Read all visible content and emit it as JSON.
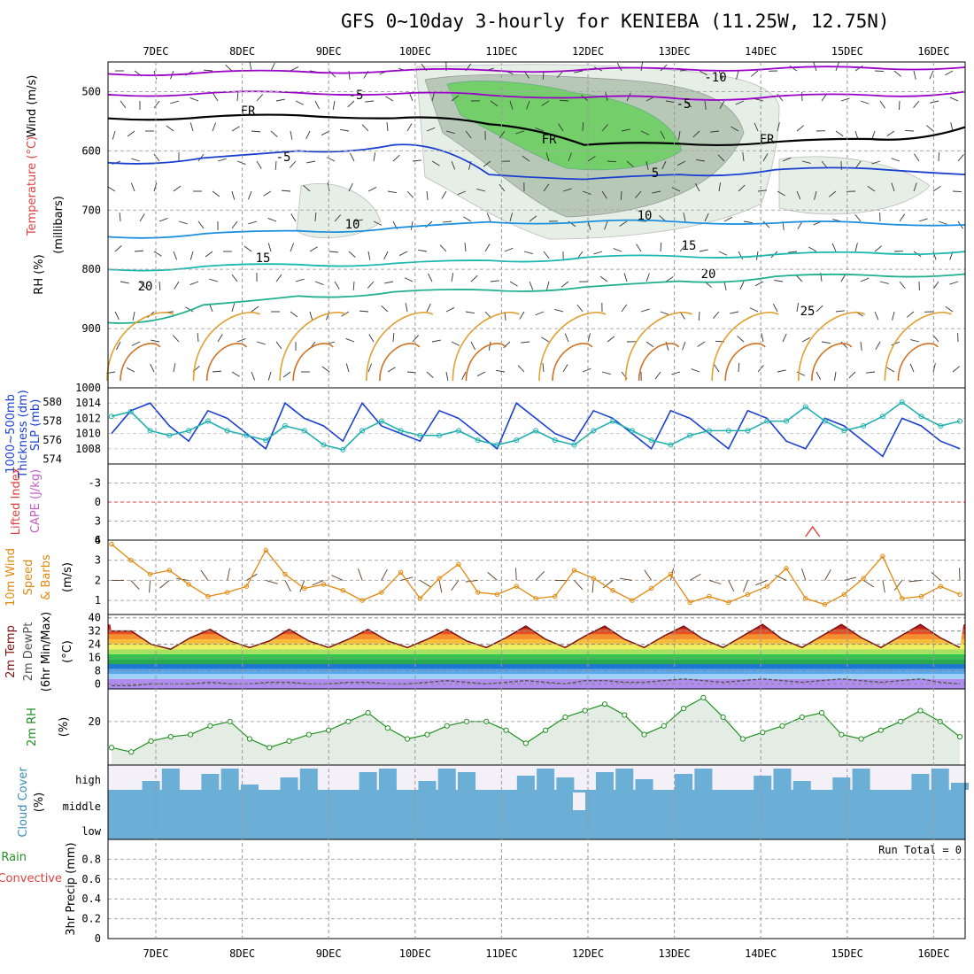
{
  "title": "GFS 0~10day 3-hourly for KENIEBA (11.25W, 12.75N)",
  "chart_data": [
    {
      "type": "contour-profile",
      "panel": "upper-air",
      "y_axis_label": "(millibars)",
      "legend_labels": [
        "Wind (m/s)",
        "Temperature (°C)",
        "RH (%)"
      ],
      "x_ticks": [
        "7DEC",
        "8DEC",
        "9DEC",
        "10DEC",
        "11DEC",
        "12DEC",
        "13DEC",
        "14DEC",
        "15DEC",
        "16DEC"
      ],
      "y_ticks": [
        500,
        600,
        700,
        800,
        900,
        1000
      ],
      "ylim": [
        450,
        1000
      ],
      "contour_labels": [
        "-10",
        "-5",
        "-5",
        "FR",
        "FR",
        "FR",
        "-5",
        "5",
        "10",
        "10",
        "15",
        "15",
        "20",
        "20",
        "25"
      ],
      "isotherms": [
        {
          "name": "-10",
          "color": "#9a00c8",
          "levels": [
            470,
            468,
            466,
            465,
            464,
            463,
            462,
            461,
            460,
            459
          ]
        },
        {
          "name": "-5",
          "color": "#9a00c8",
          "levels": [
            505,
            503,
            502,
            504,
            506,
            510,
            512,
            508,
            506,
            500
          ]
        },
        {
          "name": "FR",
          "color": "#000000",
          "levels": [
            545,
            543,
            540,
            545,
            555,
            590,
            588,
            585,
            580,
            560
          ]
        },
        {
          "name": "5",
          "color": "#1a3fd0",
          "levels": [
            620,
            612,
            600,
            590,
            640,
            648,
            640,
            632,
            630,
            640
          ]
        },
        {
          "name": "10",
          "color": "#1a8fe0",
          "levels": [
            745,
            740,
            735,
            730,
            720,
            720,
            720,
            722,
            722,
            725
          ]
        },
        {
          "name": "15",
          "color": "#19b8b0",
          "levels": [
            800,
            795,
            792,
            790,
            785,
            780,
            778,
            775,
            772,
            770
          ]
        },
        {
          "name": "20",
          "color": "#20b090",
          "levels": [
            890,
            860,
            845,
            838,
            835,
            830,
            820,
            812,
            810,
            808
          ]
        }
      ]
    },
    {
      "type": "line",
      "panel": "slp-thickness",
      "y_axis_label": "Thickness (dm)",
      "y_axis_label2": "1000~500mb",
      "y2_axis_label": "SLP (mb)",
      "y_ticks_left": [
        574,
        576,
        578,
        580
      ],
      "y_ticks_right": [
        1008,
        1010,
        1012,
        1014
      ],
      "series": [
        {
          "name": "SLP",
          "color": "#1a3fd0",
          "values": [
            1010,
            1013,
            1014,
            1011,
            1009,
            1013,
            1012,
            1010,
            1008,
            1014,
            1012,
            1011,
            1009,
            1014,
            1011,
            1010,
            1009,
            1013,
            1012,
            1010,
            1008,
            1014,
            1012,
            1010,
            1009,
            1013,
            1012,
            1010,
            1008,
            1013,
            1012,
            1010,
            1008,
            1013,
            1012,
            1009,
            1008,
            1012,
            1011,
            1009,
            1007,
            1012,
            1011,
            1009,
            1008
          ]
        },
        {
          "name": "Thickness",
          "color": "#20b0b0",
          "values": [
            578.5,
            579,
            577,
            576.5,
            577,
            578,
            577,
            576.5,
            576,
            577.5,
            577,
            575.5,
            575,
            577,
            578,
            577,
            576.5,
            576.5,
            577,
            576,
            575.5,
            576,
            577,
            576,
            575.5,
            577,
            578,
            577,
            576,
            575.5,
            576.5,
            577,
            577,
            577,
            578,
            578,
            579.5,
            578,
            577,
            577.5,
            578.5,
            580,
            578.5,
            577.5,
            578
          ]
        }
      ]
    },
    {
      "type": "line",
      "panel": "cape-li",
      "y_axis_label": "Lifted Index",
      "y2_axis_label": "CAPE (J/kg)",
      "y_ticks": [
        "-3",
        "0",
        "3",
        "6"
      ],
      "ylim": [
        -6,
        6
      ],
      "note_points": [
        {
          "x_day": 14.6,
          "value": 4
        }
      ]
    },
    {
      "type": "line",
      "panel": "wind10m",
      "y_axis_label": "10m Wind",
      "y_axis_label2": "Speed",
      "y_axis_label3": "& Barbs",
      "y_axis_units": "(m/s)",
      "y_ticks": [
        1,
        2,
        3,
        4
      ],
      "ylim": [
        0.3,
        4
      ],
      "series": [
        {
          "name": "Speed",
          "color": "#e08a10",
          "values": [
            3.8,
            3.0,
            2.3,
            2.5,
            1.8,
            1.2,
            1.4,
            1.7,
            3.5,
            2.3,
            1.6,
            1.8,
            1.5,
            1.0,
            1.4,
            2.4,
            1.1,
            2.1,
            2.8,
            1.4,
            1.3,
            1.7,
            1.1,
            1.2,
            2.5,
            2.1,
            1.5,
            1.0,
            1.6,
            2.3,
            0.9,
            1.2,
            0.9,
            1.3,
            1.7,
            2.6,
            1.1,
            0.8,
            1.3,
            2.1,
            3.2,
            1.1,
            1.2,
            1.7,
            1.3
          ]
        }
      ]
    },
    {
      "type": "area",
      "panel": "temperature",
      "y_axis_label": "2m Temp",
      "y_axis_label2": "2m DewPt",
      "y_axis_label3": "(6hr Min/Max)",
      "y_axis_units": "(°C)",
      "y_ticks": [
        0,
        8,
        16,
        24,
        32,
        40
      ],
      "ylim": [
        -3,
        42
      ],
      "series": [
        {
          "name": "2m Temp",
          "color": "#7a1010",
          "values": [
            32,
            32,
            24,
            21,
            28,
            33,
            26,
            22,
            26,
            33,
            26,
            22,
            27,
            33,
            26,
            22,
            27,
            33,
            26,
            22,
            28,
            35,
            27,
            22,
            29,
            35,
            27,
            22,
            29,
            35,
            27,
            22,
            29,
            36,
            27,
            22,
            29,
            36,
            28,
            22,
            29,
            36,
            28,
            22
          ]
        },
        {
          "name": "2m DewPt",
          "color": "#555555",
          "values": [
            -1,
            -1,
            0,
            0,
            0,
            1,
            0,
            0,
            1,
            1,
            0,
            0,
            1,
            1,
            0,
            0,
            1,
            2,
            1,
            0,
            1,
            2,
            1,
            0,
            2,
            2,
            1,
            1,
            2,
            3,
            2,
            1,
            2,
            3,
            2,
            1,
            2,
            3,
            2,
            1,
            2,
            3,
            1,
            0
          ]
        }
      ]
    },
    {
      "type": "area",
      "panel": "rh2m",
      "y_axis_label": "2m RH",
      "y_axis_units": "(%)",
      "y_ticks": [
        20
      ],
      "ylim": [
        0,
        35
      ],
      "series": [
        {
          "name": "2m RH",
          "color": "#209020",
          "values": [
            8,
            6,
            11,
            13,
            14,
            18,
            20,
            12,
            8,
            11,
            14,
            16,
            20,
            24,
            17,
            12,
            14,
            18,
            20,
            20,
            16,
            10,
            16,
            22,
            25,
            28,
            23,
            14,
            18,
            26,
            31,
            22,
            12,
            15,
            18,
            22,
            24,
            14,
            12,
            16,
            20,
            25,
            20,
            13
          ]
        }
      ]
    },
    {
      "type": "area",
      "panel": "cloud",
      "y_axis_label": "Cloud Cover",
      "y_axis_units": "(%)",
      "y_ticks": [
        "high",
        "middle",
        "low"
      ],
      "colors": {
        "cloud": "#6baed6",
        "clear": "#f3f0f8"
      }
    },
    {
      "type": "bar",
      "panel": "precip",
      "y_axis_label": "3hr Precip (mm)",
      "legend_labels": [
        "Total / Rain",
        "Convective"
      ],
      "run_total_label": "Run Total = 0",
      "y_ticks": [
        0,
        0.2,
        0.4,
        0.6,
        0.8
      ],
      "ylim": [
        0,
        1
      ],
      "values": []
    }
  ]
}
